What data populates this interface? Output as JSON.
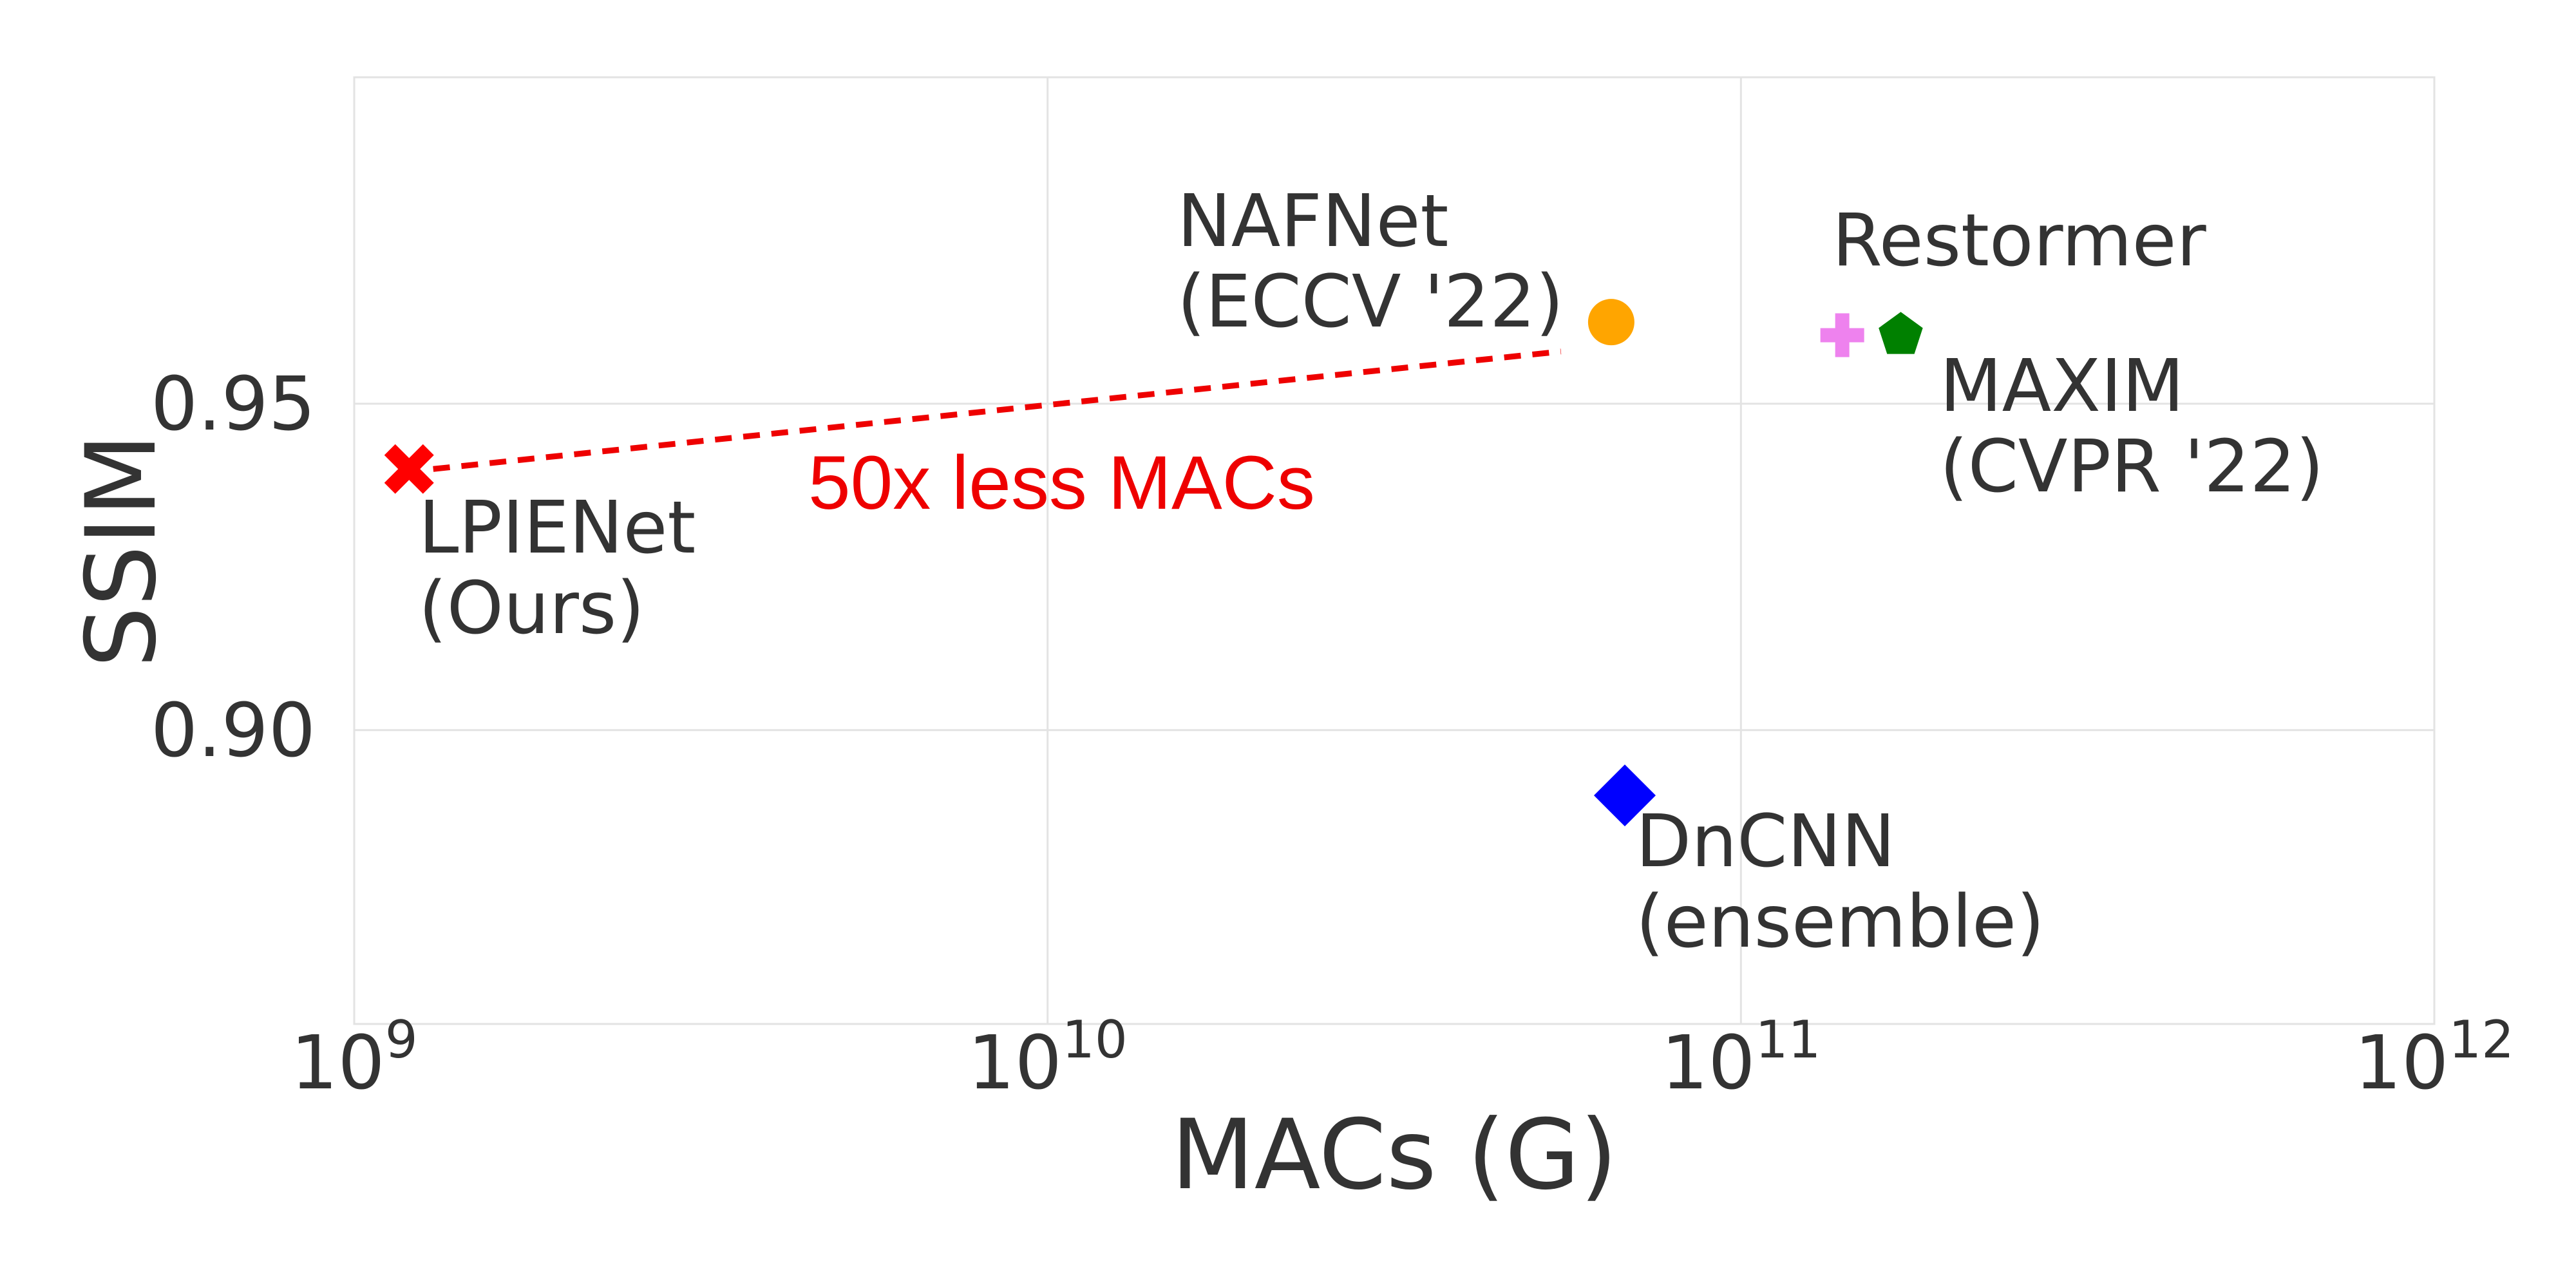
{
  "chart_data": {
    "type": "scatter",
    "title": "",
    "xlabel": "MACs (G)",
    "ylabel": "SSIM",
    "x_scale": "log",
    "xlim": [
      1000000000,
      1000000000000
    ],
    "ylim": [
      0.855,
      1.0
    ],
    "grid": true,
    "x_ticks": [
      {
        "value": 1000000000,
        "base": "10",
        "exp": "9"
      },
      {
        "value": 10000000000,
        "base": "10",
        "exp": "10"
      },
      {
        "value": 100000000000,
        "base": "10",
        "exp": "11"
      },
      {
        "value": 1000000000000,
        "base": "10",
        "exp": "12"
      }
    ],
    "y_ticks": [
      {
        "value": 0.9,
        "label": "0.90"
      },
      {
        "value": 0.95,
        "label": "0.95"
      }
    ],
    "points": [
      {
        "id": "lpienet",
        "x": 1200000000,
        "y": 0.94,
        "marker": "X",
        "color": "#ff0000",
        "label_lines": [
          "LPIENet",
          "(Ours)"
        ]
      },
      {
        "id": "nafnet",
        "x": 65000000000,
        "y": 0.9625,
        "marker": "circle",
        "color": "#ffa500",
        "label_lines": [
          "NAFNet",
          "(ECCV '22)"
        ]
      },
      {
        "id": "restormer",
        "x": 140000000000,
        "y": 0.9605,
        "marker": "plus",
        "color": "#ee82ee",
        "label_lines": [
          "Restormer"
        ]
      },
      {
        "id": "maxim",
        "x": 170000000000,
        "y": 0.9605,
        "marker": "pentagon",
        "color": "#008000",
        "label_lines": [
          "MAXIM",
          "(CVPR '22)"
        ]
      },
      {
        "id": "dncnn",
        "x": 68000000000,
        "y": 0.89,
        "marker": "diamond",
        "color": "#0000ff",
        "label_lines": [
          "DnCNN",
          "(ensemble)"
        ]
      }
    ],
    "annotation": {
      "text": "50x less MACs",
      "color": "#ee0000",
      "from": {
        "x": 1300000000,
        "y": 0.94
      },
      "to": {
        "x": 55000000000,
        "y": 0.958
      }
    }
  }
}
